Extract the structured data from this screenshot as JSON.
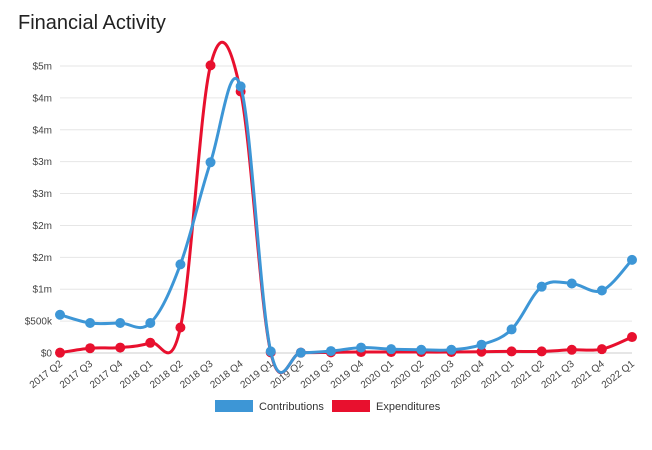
{
  "page": {
    "title": "Financial Activity"
  },
  "chart_data": {
    "type": "line",
    "title": "Financial Activity",
    "xlabel": "",
    "ylabel": "",
    "ylim": [
      0,
      4500000
    ],
    "y_ticks": [
      0,
      500000,
      1000000,
      1500000,
      2000000,
      2500000,
      3000000,
      3500000,
      4000000,
      4500000
    ],
    "y_tick_labels": [
      "$0",
      "$500k",
      "$1m",
      "$2m",
      "$2m",
      "$3m",
      "$3m",
      "$4m",
      "$4m",
      "$5m"
    ],
    "grid": true,
    "legend_position": "bottom",
    "categories": [
      "2017 Q2",
      "2017 Q3",
      "2017 Q4",
      "2018 Q1",
      "2018 Q2",
      "2018 Q3",
      "2018 Q4",
      "2019 Q1",
      "2019 Q2",
      "2019 Q3",
      "2019 Q4",
      "2020 Q1",
      "2020 Q2",
      "2020 Q3",
      "2020 Q4",
      "2021 Q1",
      "2021 Q2",
      "2021 Q3",
      "2021 Q4",
      "2022 Q1"
    ],
    "series": [
      {
        "name": "Contributions",
        "color": "#3d96d6",
        "values": [
          600000,
          470000,
          470000,
          470000,
          1390000,
          2990000,
          4180000,
          25000,
          5000,
          30000,
          85000,
          60000,
          50000,
          50000,
          130000,
          370000,
          1040000,
          1090000,
          980000,
          1460000
        ]
      },
      {
        "name": "Expenditures",
        "color": "#e8102e",
        "values": [
          5000,
          75000,
          85000,
          160000,
          400000,
          4510000,
          4100000,
          10000,
          5000,
          10000,
          15000,
          15000,
          15000,
          15000,
          20000,
          25000,
          25000,
          50000,
          60000,
          250000
        ]
      }
    ]
  }
}
